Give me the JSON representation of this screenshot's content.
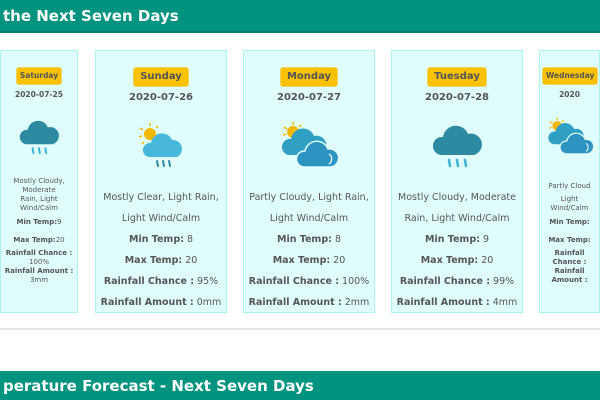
{
  "header_title": "the Next Seven Days",
  "footer_title": "perature Forecast - Next Seven Days",
  "labels": {
    "min": "Min Temp:",
    "max": "Max Temp:",
    "chance": "Rainfall Chance :",
    "amount": "Rainfall Amount :"
  },
  "colors": {
    "header": "#00937f",
    "badge": "#f8c200",
    "card_bg": "#e0fdfd"
  },
  "days": [
    {
      "day": "Saturday",
      "date": "2020-07-25",
      "icon": "rain-cloud-icon",
      "desc1": "Mostly Cloudy, Moderate",
      "desc2": "Rain, Light Wind/Calm",
      "min": " 9",
      "max": " 20",
      "chance": " 100%",
      "amount": " 3mm"
    },
    {
      "day": "Sunday",
      "date": "2020-07-26",
      "icon": "sun-rain-cloud-icon",
      "desc1": "Mostly Clear, Light Rain,",
      "desc2": "Light Wind/Calm",
      "min": " 8",
      "max": " 20",
      "chance": " 95%",
      "amount": " 0mm"
    },
    {
      "day": "Monday",
      "date": "2020-07-27",
      "icon": "partly-cloudy-icon",
      "desc1": "Partly Cloudy, Light Rain,",
      "desc2": "Light Wind/Calm",
      "min": " 8",
      "max": " 20",
      "chance": " 100%",
      "amount": " 2mm"
    },
    {
      "day": "Tuesday",
      "date": "2020-07-28",
      "icon": "rain-cloud-icon",
      "desc1": "Mostly Cloudy, Moderate",
      "desc2": "Rain, Light Wind/Calm",
      "min": " 9",
      "max": " 20",
      "chance": " 99%",
      "amount": " 4mm"
    },
    {
      "day": "Wednesday",
      "date": "2020",
      "icon": "partly-cloudy-icon",
      "desc1": "Partly Cloud",
      "desc2": "Light Wind/Calm",
      "min": "",
      "max": "",
      "chance": "",
      "amount": ""
    }
  ]
}
